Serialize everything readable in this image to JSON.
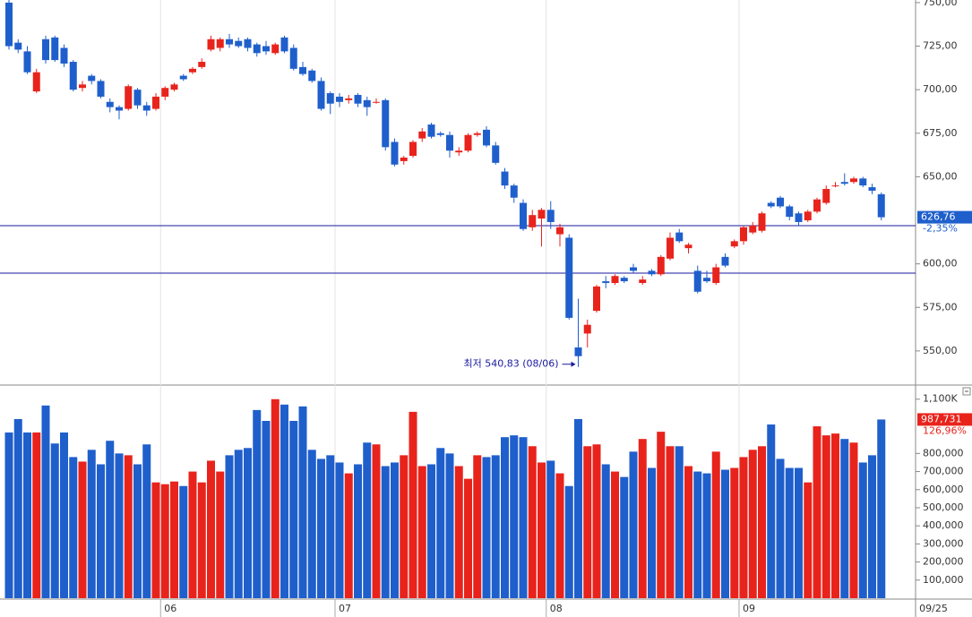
{
  "chart_data": [
    {
      "type": "candlestick",
      "categories": [
        null,
        null,
        null,
        null,
        null,
        null,
        null,
        null,
        null,
        null,
        null,
        null,
        null,
        null,
        null,
        null,
        null,
        "06",
        null,
        null,
        null,
        null,
        null,
        null,
        null,
        null,
        null,
        null,
        null,
        null,
        null,
        null,
        null,
        null,
        null,
        null,
        "07",
        null,
        null,
        null,
        null,
        null,
        null,
        null,
        null,
        null,
        null,
        null,
        null,
        null,
        null,
        null,
        null,
        null,
        null,
        null,
        null,
        null,
        null,
        "08",
        null,
        null,
        null,
        null,
        null,
        null,
        null,
        null,
        null,
        null,
        null,
        null,
        null,
        null,
        null,
        null,
        null,
        null,
        null,
        null,
        "09",
        null,
        null,
        null,
        null,
        null,
        null,
        null,
        null,
        null,
        null,
        null,
        null,
        null,
        null,
        null
      ],
      "open": [
        750,
        727,
        722,
        699,
        729,
        730,
        724,
        716,
        701,
        708,
        705,
        693,
        690,
        689,
        700,
        691,
        689,
        696,
        700,
        708,
        710,
        713,
        723,
        724,
        729,
        728,
        729,
        726,
        725,
        721,
        730,
        724,
        713,
        711,
        705,
        698,
        696,
        694,
        697,
        694,
        693,
        694,
        670,
        659,
        662,
        672,
        680,
        675,
        674,
        664,
        665,
        674,
        677,
        668,
        653,
        645,
        635,
        621,
        626,
        631,
        617,
        615,
        552,
        560,
        573,
        590,
        589,
        592,
        598,
        589,
        596,
        594,
        603,
        618,
        609,
        596,
        592,
        589,
        604,
        610,
        613,
        618,
        619,
        635,
        638,
        633,
        629,
        625,
        630,
        635,
        645,
        647,
        647,
        649,
        644,
        640
      ],
      "high": [
        752,
        729,
        725,
        712,
        731,
        731,
        726,
        717,
        705,
        709,
        706,
        695,
        691,
        703,
        701,
        693,
        698,
        702,
        704,
        709,
        713,
        718,
        731,
        730,
        732,
        730,
        730,
        727,
        728,
        727,
        731,
        726,
        716,
        712,
        707,
        699,
        698,
        697,
        698,
        696,
        695,
        695,
        672,
        662,
        671,
        678,
        681,
        676,
        676,
        667,
        675,
        676,
        679,
        670,
        655,
        646,
        637,
        631,
        632,
        636,
        623,
        617,
        580,
        568,
        588,
        593,
        594,
        593,
        600,
        593,
        597,
        605,
        618,
        620,
        612,
        599,
        596,
        600,
        606,
        614,
        622,
        624,
        630,
        636,
        639,
        634,
        630,
        631,
        638,
        645,
        647,
        652,
        650,
        650,
        646,
        641
      ],
      "low": [
        723,
        721,
        709,
        698,
        715,
        716,
        713,
        699,
        699,
        703,
        695,
        687,
        683,
        688,
        689,
        685,
        688,
        694,
        699,
        705,
        709,
        712,
        722,
        722,
        724,
        724,
        722,
        719,
        720,
        720,
        721,
        711,
        708,
        704,
        688,
        686,
        690,
        692,
        690,
        685,
        692,
        665,
        656,
        657,
        661,
        670,
        672,
        673,
        661,
        662,
        664,
        673,
        667,
        657,
        643,
        635,
        619,
        619,
        610,
        620,
        610,
        568,
        540.83,
        552,
        572,
        586,
        588,
        589,
        595,
        588,
        593,
        593,
        602,
        612,
        606,
        583,
        589,
        588,
        598,
        609,
        611,
        617,
        618,
        632,
        632,
        625,
        622,
        624,
        629,
        634,
        644,
        645,
        646,
        644,
        640,
        625
      ],
      "close": [
        725,
        723,
        710,
        710,
        717,
        717,
        715,
        700,
        703,
        705,
        696,
        690,
        688,
        702,
        691,
        688,
        696,
        701,
        703,
        706,
        712,
        716,
        729,
        729,
        726,
        725,
        724,
        721,
        722,
        726,
        722,
        712,
        709,
        705,
        689,
        692,
        693,
        695,
        692,
        690,
        693,
        667,
        657,
        661,
        670,
        676,
        673,
        674,
        665,
        665,
        674,
        675,
        668,
        658,
        645,
        638,
        620,
        628,
        631,
        624,
        621,
        569,
        547,
        565,
        587,
        589,
        593,
        590,
        596,
        591,
        594,
        604,
        615,
        613,
        611,
        584,
        590,
        598,
        599,
        613,
        621,
        622,
        629,
        633,
        633,
        627,
        624,
        630,
        637,
        643,
        645,
        646,
        649,
        645,
        642,
        626.76
      ],
      "up_color": "#e8231c",
      "down_color": "#1f5fcc",
      "ylim": [
        530.4,
        751.5
      ],
      "yticks": [
        {
          "value": 750,
          "label": "750,00"
        },
        {
          "value": 725,
          "label": "725,00"
        },
        {
          "value": 700,
          "label": "700,00"
        },
        {
          "value": 675,
          "label": "675,00"
        },
        {
          "value": 650,
          "label": "650,00"
        },
        {
          "value": 600,
          "label": "600,00"
        },
        {
          "value": 575,
          "label": "575,00"
        },
        {
          "value": 550,
          "label": "550,00"
        }
      ],
      "hlines": [
        621.9,
        594.7
      ],
      "hline_color": "#1a1aa0",
      "last_label": "626,76",
      "change_label": "-2,35%",
      "annotation": "최저 540,83 (08/06)",
      "current_date": "09/25"
    },
    {
      "type": "bar",
      "values": [
        916000,
        990000,
        916000,
        916000,
        1065000,
        855000,
        916000,
        780000,
        755000,
        820000,
        740000,
        870000,
        800000,
        790000,
        740000,
        850000,
        640000,
        630000,
        645000,
        620000,
        700000,
        640000,
        760000,
        700000,
        790000,
        820000,
        830000,
        1040000,
        980000,
        1100000,
        1070000,
        980000,
        1060000,
        820000,
        770000,
        790000,
        750000,
        690000,
        740000,
        860000,
        850000,
        730000,
        750000,
        790000,
        1030000,
        730000,
        740000,
        830000,
        800000,
        730000,
        660000,
        790000,
        780000,
        790000,
        890000,
        900000,
        890000,
        840000,
        750000,
        760000,
        690000,
        620000,
        990000,
        840000,
        850000,
        740000,
        700000,
        670000,
        810000,
        880000,
        720000,
        920000,
        840000,
        840000,
        730000,
        700000,
        690000,
        810000,
        710000,
        720000,
        780000,
        820000,
        840000,
        960000,
        770000,
        720000,
        720000,
        640000,
        950000,
        900000,
        910000,
        880000,
        860000,
        750000,
        790000,
        987731
      ],
      "ylim": [
        0,
        1173000
      ],
      "yticks": [
        {
          "value": 1100000,
          "label": "1,100K"
        },
        {
          "value": 800000,
          "label": "800,000"
        },
        {
          "value": 700000,
          "label": "700,000"
        },
        {
          "value": 600000,
          "label": "600,000"
        },
        {
          "value": 500000,
          "label": "500,000"
        },
        {
          "value": 400000,
          "label": "400,000"
        },
        {
          "value": 300000,
          "label": "300,000"
        },
        {
          "value": 200000,
          "label": "200,000"
        },
        {
          "value": 100000,
          "label": "100,000"
        }
      ],
      "last_label": "987,731",
      "ratio_label": "126,96%"
    }
  ]
}
